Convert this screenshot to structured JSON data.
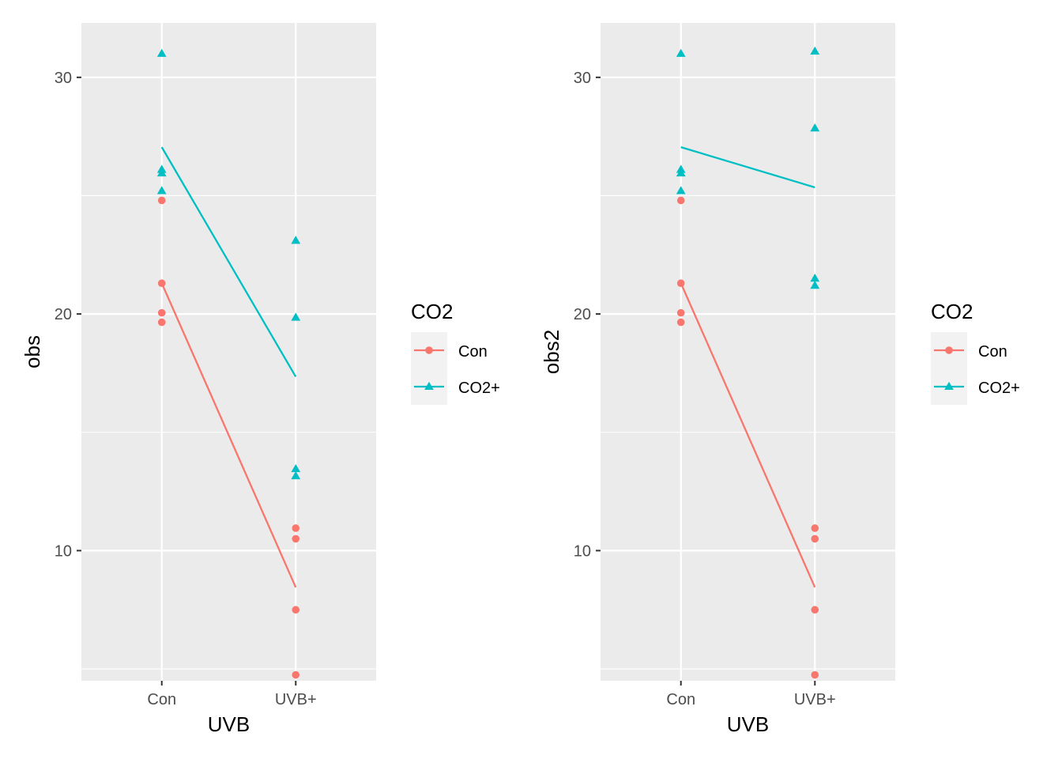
{
  "colors": {
    "con": "#F8766D",
    "co2plus": "#00BFC4",
    "panel_bg": "#EBEBEB",
    "grid": "#FFFFFF",
    "legend_key_bg": "#F2F2F2"
  },
  "chart_data": [
    {
      "type": "scatter",
      "xlabel": "UVB",
      "ylabel": "obs",
      "categories": [
        "Con",
        "UVB+"
      ],
      "y_ticks": [
        "10",
        "20",
        "30"
      ],
      "ylim": [
        4.5,
        32.3
      ],
      "grid": true,
      "legend": {
        "title": "CO2",
        "placement": "right",
        "entries": [
          {
            "label": "Con",
            "shape": "circle",
            "color_key": "con"
          },
          {
            "label": "CO2+",
            "shape": "triangle",
            "color_key": "co2plus"
          }
        ]
      },
      "series": [
        {
          "name": "Con",
          "shape": "circle",
          "color_key": "con",
          "points": [
            {
              "x": "Con",
              "y": 24.8
            },
            {
              "x": "Con",
              "y": 21.3
            },
            {
              "x": "Con",
              "y": 20.05
            },
            {
              "x": "Con",
              "y": 19.65
            },
            {
              "x": "UVB+",
              "y": 10.95
            },
            {
              "x": "UVB+",
              "y": 10.5
            },
            {
              "x": "UVB+",
              "y": 7.5
            },
            {
              "x": "UVB+",
              "y": 4.75
            }
          ],
          "line": [
            {
              "x": "Con",
              "y": 21.3
            },
            {
              "x": "UVB+",
              "y": 8.45
            }
          ]
        },
        {
          "name": "CO2+",
          "shape": "triangle",
          "color_key": "co2plus",
          "points": [
            {
              "x": "Con",
              "y": 31.0
            },
            {
              "x": "Con",
              "y": 26.1
            },
            {
              "x": "Con",
              "y": 25.95
            },
            {
              "x": "Con",
              "y": 25.2
            },
            {
              "x": "UVB+",
              "y": 23.1
            },
            {
              "x": "UVB+",
              "y": 19.85
            },
            {
              "x": "UVB+",
              "y": 13.45
            },
            {
              "x": "UVB+",
              "y": 13.15
            }
          ],
          "line": [
            {
              "x": "Con",
              "y": 27.05
            },
            {
              "x": "UVB+",
              "y": 17.35
            }
          ]
        }
      ]
    },
    {
      "type": "scatter",
      "xlabel": "UVB",
      "ylabel": "obs2",
      "categories": [
        "Con",
        "UVB+"
      ],
      "y_ticks": [
        "10",
        "20",
        "30"
      ],
      "ylim": [
        4.5,
        32.3
      ],
      "grid": true,
      "legend": {
        "title": "CO2",
        "placement": "right",
        "entries": [
          {
            "label": "Con",
            "shape": "circle",
            "color_key": "con"
          },
          {
            "label": "CO2+",
            "shape": "triangle",
            "color_key": "co2plus"
          }
        ]
      },
      "series": [
        {
          "name": "Con",
          "shape": "circle",
          "color_key": "con",
          "points": [
            {
              "x": "Con",
              "y": 24.8
            },
            {
              "x": "Con",
              "y": 21.3
            },
            {
              "x": "Con",
              "y": 20.05
            },
            {
              "x": "Con",
              "y": 19.65
            },
            {
              "x": "UVB+",
              "y": 10.95
            },
            {
              "x": "UVB+",
              "y": 10.5
            },
            {
              "x": "UVB+",
              "y": 7.5
            },
            {
              "x": "UVB+",
              "y": 4.75
            }
          ],
          "line": [
            {
              "x": "Con",
              "y": 21.3
            },
            {
              "x": "UVB+",
              "y": 8.45
            }
          ]
        },
        {
          "name": "CO2+",
          "shape": "triangle",
          "color_key": "co2plus",
          "points": [
            {
              "x": "Con",
              "y": 31.0
            },
            {
              "x": "Con",
              "y": 26.1
            },
            {
              "x": "Con",
              "y": 25.95
            },
            {
              "x": "Con",
              "y": 25.2
            },
            {
              "x": "UVB+",
              "y": 31.1
            },
            {
              "x": "UVB+",
              "y": 27.85
            },
            {
              "x": "UVB+",
              "y": 21.5
            },
            {
              "x": "UVB+",
              "y": 21.2
            }
          ],
          "line": [
            {
              "x": "Con",
              "y": 27.05
            },
            {
              "x": "UVB+",
              "y": 25.35
            }
          ]
        }
      ]
    }
  ]
}
